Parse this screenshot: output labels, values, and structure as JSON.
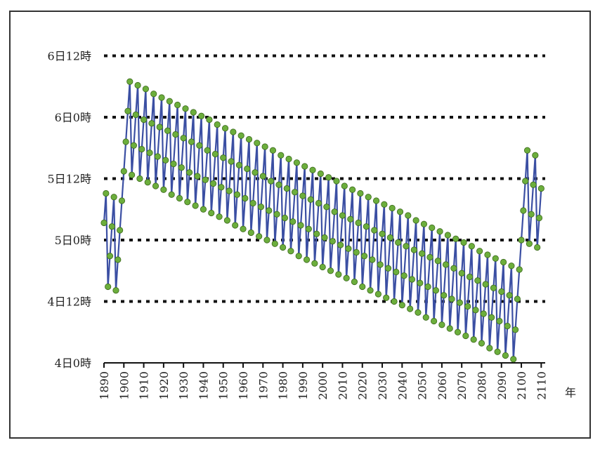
{
  "chart_data": {
    "type": "line",
    "x": [
      1890,
      1891,
      1892,
      1893,
      1894,
      1895,
      1896,
      1897,
      1898,
      1899,
      1900,
      1901,
      1902,
      1903,
      1904,
      1905,
      1906,
      1907,
      1908,
      1909,
      1910,
      1911,
      1912,
      1913,
      1914,
      1915,
      1916,
      1917,
      1918,
      1919,
      1920,
      1921,
      1922,
      1923,
      1924,
      1925,
      1926,
      1927,
      1928,
      1929,
      1930,
      1931,
      1932,
      1933,
      1934,
      1935,
      1936,
      1937,
      1938,
      1939,
      1940,
      1941,
      1942,
      1943,
      1944,
      1945,
      1946,
      1947,
      1948,
      1949,
      1950,
      1951,
      1952,
      1953,
      1954,
      1955,
      1956,
      1957,
      1958,
      1959,
      1960,
      1961,
      1962,
      1963,
      1964,
      1965,
      1966,
      1967,
      1968,
      1969,
      1970,
      1971,
      1972,
      1973,
      1974,
      1975,
      1976,
      1977,
      1978,
      1979,
      1980,
      1981,
      1982,
      1983,
      1984,
      1985,
      1986,
      1987,
      1988,
      1989,
      1990,
      1991,
      1992,
      1993,
      1994,
      1995,
      1996,
      1997,
      1998,
      1999,
      2000,
      2001,
      2002,
      2003,
      2004,
      2005,
      2006,
      2007,
      2008,
      2009,
      2010,
      2011,
      2012,
      2013,
      2014,
      2015,
      2016,
      2017,
      2018,
      2019,
      2020,
      2021,
      2022,
      2023,
      2024,
      2025,
      2026,
      2027,
      2028,
      2029,
      2030,
      2031,
      2032,
      2033,
      2034,
      2035,
      2036,
      2037,
      2038,
      2039,
      2040,
      2041,
      2042,
      2043,
      2044,
      2045,
      2046,
      2047,
      2048,
      2049,
      2050,
      2051,
      2052,
      2053,
      2054,
      2055,
      2056,
      2057,
      2058,
      2059,
      2060,
      2061,
      2062,
      2063,
      2064,
      2065,
      2066,
      2067,
      2068,
      2069,
      2070,
      2071,
      2072,
      2073,
      2074,
      2075,
      2076,
      2077,
      2078,
      2079,
      2080,
      2081,
      2082,
      2083,
      2084,
      2085,
      2086,
      2087,
      2088,
      2089,
      2090,
      2091,
      2092,
      2093,
      2094,
      2095,
      2096,
      2097,
      2098,
      2099,
      2100,
      2101,
      2102,
      2103,
      2104,
      2105,
      2106,
      2107,
      2108,
      2109,
      2110
    ],
    "values": [
      5.14,
      5.38,
      4.62,
      4.87,
      5.11,
      5.35,
      4.59,
      4.84,
      5.08,
      5.32,
      5.56,
      5.8,
      6.05,
      6.29,
      5.53,
      5.77,
      6.02,
      6.26,
      5.5,
      5.74,
      5.98,
      6.23,
      5.47,
      5.71,
      5.95,
      6.19,
      5.44,
      5.68,
      5.92,
      6.16,
      5.41,
      5.65,
      5.89,
      6.13,
      5.37,
      5.62,
      5.86,
      6.1,
      5.34,
      5.59,
      5.83,
      6.07,
      5.31,
      5.55,
      5.8,
      6.04,
      5.28,
      5.52,
      5.77,
      6.01,
      5.25,
      5.49,
      5.73,
      5.98,
      5.22,
      5.46,
      5.7,
      5.94,
      5.19,
      5.43,
      5.67,
      5.91,
      5.16,
      5.4,
      5.64,
      5.88,
      5.12,
      5.37,
      5.61,
      5.85,
      5.09,
      5.34,
      5.58,
      5.82,
      5.06,
      5.3,
      5.55,
      5.79,
      5.03,
      5.27,
      5.52,
      5.76,
      5.0,
      5.24,
      5.48,
      5.73,
      4.97,
      5.21,
      5.45,
      5.69,
      4.94,
      5.18,
      5.42,
      5.66,
      4.91,
      5.15,
      5.39,
      5.63,
      4.87,
      5.12,
      5.36,
      5.6,
      4.84,
      5.09,
      5.33,
      5.57,
      4.81,
      5.05,
      5.3,
      5.54,
      4.78,
      5.02,
      5.27,
      5.51,
      4.75,
      4.99,
      5.23,
      5.48,
      4.72,
      4.96,
      5.2,
      5.44,
      4.69,
      4.93,
      5.17,
      5.41,
      4.66,
      4.9,
      5.14,
      5.38,
      4.62,
      4.87,
      5.11,
      5.35,
      4.59,
      4.84,
      5.08,
      5.32,
      4.56,
      4.8,
      5.05,
      5.29,
      4.53,
      4.77,
      5.02,
      5.26,
      4.5,
      4.74,
      4.98,
      5.23,
      4.47,
      4.71,
      4.95,
      5.2,
      4.44,
      4.68,
      4.92,
      5.16,
      4.41,
      4.65,
      4.89,
      5.13,
      4.37,
      4.62,
      4.86,
      5.1,
      4.34,
      4.59,
      4.83,
      5.07,
      4.31,
      4.55,
      4.8,
      5.04,
      4.28,
      4.52,
      4.77,
      5.01,
      4.25,
      4.49,
      4.73,
      4.98,
      4.22,
      4.46,
      4.7,
      4.95,
      4.19,
      4.43,
      4.67,
      4.91,
      4.16,
      4.4,
      4.64,
      4.88,
      4.12,
      4.37,
      4.61,
      4.85,
      4.09,
      4.34,
      4.58,
      4.82,
      4.06,
      4.3,
      4.55,
      4.79,
      4.03,
      4.27,
      4.52,
      4.76,
      5.0,
      5.24,
      5.48,
      5.73,
      4.97,
      5.21,
      5.45,
      5.69,
      4.94,
      5.18,
      5.42
    ],
    "color": "#3b4fa3",
    "marker_color": "#6cae3c",
    "xlim": [
      1890,
      2112
    ],
    "xticks": [
      1890,
      1900,
      1910,
      1920,
      1930,
      1940,
      1950,
      1960,
      1970,
      1980,
      1990,
      2000,
      2010,
      2020,
      2030,
      2040,
      2050,
      2060,
      2070,
      2080,
      2090,
      2100,
      2110
    ],
    "ylim": [
      4,
      6.6
    ],
    "yticks": [
      {
        "value": 4,
        "label": "4日0時"
      },
      {
        "value": 4.5,
        "label": "4日12時"
      },
      {
        "value": 5,
        "label": "5日0時"
      },
      {
        "value": 5.5,
        "label": "5日12時"
      },
      {
        "value": 6,
        "label": "6日0時"
      },
      {
        "value": 6.5,
        "label": "6日12時"
      }
    ],
    "x_label": "年",
    "grid": true
  }
}
